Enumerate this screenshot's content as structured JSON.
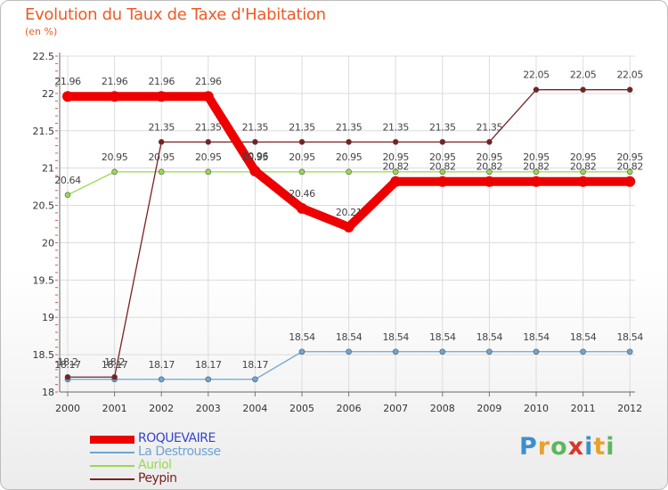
{
  "title": "Evolution du Taux de Taxe d'Habitation",
  "subtitle": "(en %)",
  "logo": {
    "letters": [
      {
        "ch": "P",
        "color": "#3d8fcc"
      },
      {
        "ch": "r",
        "color": "#e8a22a"
      },
      {
        "ch": "o",
        "color": "#5cb85c"
      },
      {
        "ch": "x",
        "color": "#d9362b"
      },
      {
        "ch": "i",
        "color": "#3d8fcc"
      },
      {
        "ch": "t",
        "color": "#e8a22a"
      },
      {
        "ch": "i",
        "color": "#5cb85c"
      }
    ]
  },
  "chart_data": {
    "type": "line",
    "title": "Evolution du Taux de Taxe d'Habitation",
    "ylabel": "(en %)",
    "xlabel": "",
    "ylim": [
      18,
      22.5
    ],
    "yticks": [
      "18",
      "18.5",
      "19",
      "19.5",
      "20",
      "20.5",
      "21",
      "21.5",
      "22",
      "22.5"
    ],
    "ytick_values": [
      18,
      18.5,
      19,
      19.5,
      20,
      20.5,
      21,
      21.5,
      22,
      22.5
    ],
    "categories": [
      "2000",
      "2001",
      "2002",
      "2003",
      "2004",
      "2005",
      "2006",
      "2007",
      "2008",
      "2009",
      "2010",
      "2011",
      "2012"
    ],
    "grid": true,
    "legend_position": "bottom-left",
    "series": [
      {
        "name": "ROQUEVAIRE",
        "color": "#ee0000",
        "emphasis": "bold",
        "values": [
          21.96,
          21.96,
          21.96,
          21.96,
          20.96,
          20.46,
          20.21,
          20.82,
          20.82,
          20.82,
          20.82,
          20.82,
          20.82
        ],
        "labels": [
          "21.96",
          "21.96",
          "21.96",
          "21.96",
          "20.96",
          "20.46",
          "20.21",
          "20.82",
          "20.82",
          "20.82",
          "20.82",
          "20.82",
          "20.82"
        ]
      },
      {
        "name": "La Destrousse",
        "color": "#6ea5d2",
        "emphasis": "normal",
        "values": [
          18.17,
          18.17,
          18.17,
          18.17,
          18.17,
          18.54,
          18.54,
          18.54,
          18.54,
          18.54,
          18.54,
          18.54,
          18.54
        ],
        "labels": [
          "18.17",
          "18.17",
          "18.17",
          "18.17",
          "18.17",
          "18.54",
          "18.54",
          "18.54",
          "18.54",
          "18.54",
          "18.54",
          "18.54",
          "18.54"
        ]
      },
      {
        "name": "Auriol",
        "color": "#99d94f",
        "emphasis": "normal",
        "values": [
          20.64,
          20.95,
          20.95,
          20.95,
          20.95,
          20.95,
          20.95,
          20.95,
          20.95,
          20.95,
          20.95,
          20.95,
          20.95
        ],
        "labels": [
          "20.64",
          "20.95",
          "20.95",
          "20.95",
          "20.95",
          "20.95",
          "20.95",
          "20.95",
          "20.95",
          "20.95",
          "20.95",
          "20.95",
          "20.95"
        ]
      },
      {
        "name": "Peypin",
        "color": "#7a2020",
        "emphasis": "normal",
        "values": [
          18.2,
          18.2,
          21.35,
          21.35,
          21.35,
          21.35,
          21.35,
          21.35,
          21.35,
          21.35,
          22.05,
          22.05,
          22.05
        ],
        "labels": [
          "18.2",
          "18.2",
          "21.35",
          "21.35",
          "21.35",
          "21.35",
          "21.35",
          "21.35",
          "21.35",
          "21.35",
          "22.05",
          "22.05",
          "22.05"
        ]
      }
    ]
  }
}
